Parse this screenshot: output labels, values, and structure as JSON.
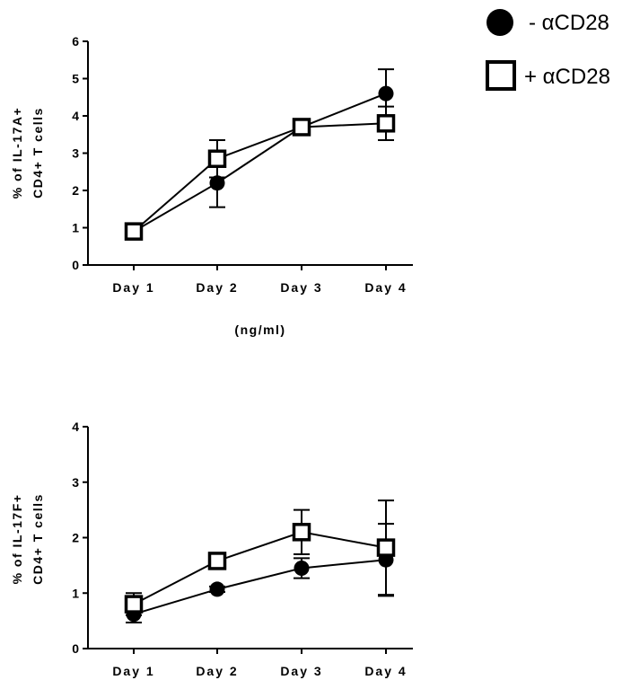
{
  "legend": {
    "items": [
      {
        "label": "- αCD28",
        "marker": "filled-circle"
      },
      {
        "label": "+ αCD28",
        "marker": "open-square"
      }
    ]
  },
  "chart_data": [
    {
      "type": "line",
      "categories": [
        "Day 1",
        "Day 2",
        "Day 3",
        "Day 4"
      ],
      "ylabel_lines": [
        "% of IL-17A+",
        "CD4+ T cells"
      ],
      "xlabel": "(ng/ml)",
      "ylim": [
        0,
        6
      ],
      "yticks": [
        0,
        1,
        2,
        3,
        4,
        5,
        6
      ],
      "series": [
        {
          "name": "- αCD28",
          "marker": "filled-circle",
          "values": [
            0.9,
            2.2,
            3.7,
            4.6
          ],
          "err": [
            0.1,
            0.65,
            0.1,
            0.65
          ]
        },
        {
          "name": "+ αCD28",
          "marker": "open-square",
          "values": [
            0.9,
            2.85,
            3.7,
            3.8
          ],
          "err": [
            0.1,
            0.5,
            0.1,
            0.45
          ]
        }
      ]
    },
    {
      "type": "line",
      "categories": [
        "Day 1",
        "Day 2",
        "Day 3",
        "Day 4"
      ],
      "ylabel_lines": [
        "% of IL-17F+",
        "CD4+ T cells"
      ],
      "xlabel": "",
      "ylim": [
        0,
        4
      ],
      "yticks": [
        0,
        1,
        2,
        3,
        4
      ],
      "series": [
        {
          "name": "- αCD28",
          "marker": "filled-circle",
          "values": [
            0.62,
            1.07,
            1.45,
            1.6
          ],
          "err": [
            0.15,
            0.05,
            0.18,
            0.65
          ]
        },
        {
          "name": "+ αCD28",
          "marker": "open-square",
          "values": [
            0.8,
            1.58,
            2.1,
            1.82
          ],
          "err": [
            0.2,
            0.08,
            0.4,
            0.85
          ]
        }
      ]
    }
  ]
}
